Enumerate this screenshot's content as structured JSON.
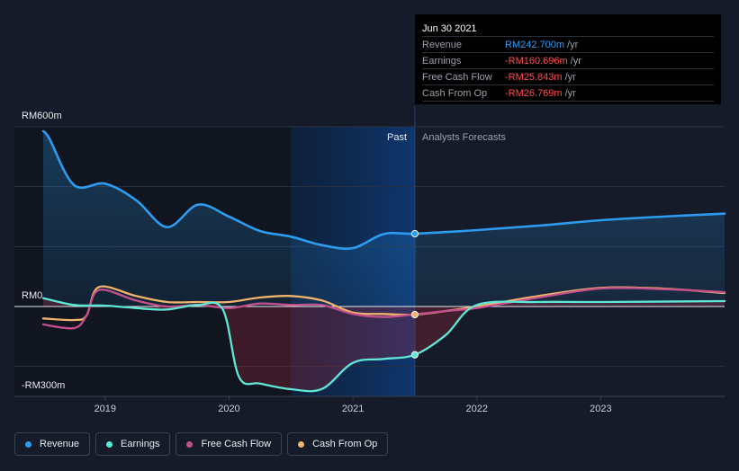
{
  "chart_data": {
    "type": "line",
    "title": "",
    "y_unit": "RM",
    "ylim": [
      -300,
      600
    ],
    "y_ticks": [
      {
        "value": 600,
        "label": "RM600m"
      },
      {
        "value": 0,
        "label": "RM0"
      },
      {
        "value": -300,
        "label": "-RM300m"
      }
    ],
    "xlim": [
      2018.5,
      2024.0
    ],
    "x_ticks": [
      {
        "value": 2019,
        "label": "2019"
      },
      {
        "value": 2020,
        "label": "2020"
      },
      {
        "value": 2021,
        "label": "2021"
      },
      {
        "value": 2022,
        "label": "2022"
      },
      {
        "value": 2023,
        "label": "2023"
      }
    ],
    "past_end": 2021.5,
    "shade_start": 2020.5,
    "region_labels": {
      "past": "Past",
      "forecast": "Analysts Forecasts"
    },
    "series": [
      {
        "name": "Revenue",
        "color": "#2d9cf0",
        "area": true,
        "points": [
          [
            2018.5,
            585
          ],
          [
            2018.55,
            560
          ],
          [
            2018.75,
            405
          ],
          [
            2019.0,
            410
          ],
          [
            2019.25,
            355
          ],
          [
            2019.5,
            265
          ],
          [
            2019.75,
            340
          ],
          [
            2020.0,
            300
          ],
          [
            2020.25,
            252
          ],
          [
            2020.5,
            233
          ],
          [
            2020.75,
            205
          ],
          [
            2021.0,
            195
          ],
          [
            2021.25,
            242
          ],
          [
            2021.5,
            243
          ],
          [
            2022.0,
            255
          ],
          [
            2022.5,
            270
          ],
          [
            2023.0,
            288
          ],
          [
            2023.5,
            300
          ],
          [
            2024.0,
            310
          ]
        ]
      },
      {
        "name": "Earnings",
        "color": "#5ee7d4",
        "area": true,
        "points": [
          [
            2018.5,
            28
          ],
          [
            2018.75,
            5
          ],
          [
            2019.0,
            3
          ],
          [
            2019.3,
            -7
          ],
          [
            2019.5,
            -10
          ],
          [
            2019.75,
            5
          ],
          [
            2019.95,
            -10
          ],
          [
            2020.08,
            -235
          ],
          [
            2020.25,
            -257
          ],
          [
            2020.5,
            -276
          ],
          [
            2020.75,
            -275
          ],
          [
            2021.0,
            -188
          ],
          [
            2021.25,
            -175
          ],
          [
            2021.5,
            -161
          ],
          [
            2021.75,
            -95
          ],
          [
            2022.0,
            5
          ],
          [
            2022.5,
            15
          ],
          [
            2023.0,
            15
          ],
          [
            2024.0,
            18
          ]
        ]
      },
      {
        "name": "Free Cash Flow",
        "color": "#c44f8d",
        "area": false,
        "points": [
          [
            2018.5,
            -60
          ],
          [
            2018.75,
            -72
          ],
          [
            2018.85,
            -30
          ],
          [
            2018.95,
            55
          ],
          [
            2019.25,
            20
          ],
          [
            2019.5,
            0
          ],
          [
            2019.75,
            5
          ],
          [
            2020.0,
            -5
          ],
          [
            2020.25,
            10
          ],
          [
            2020.5,
            5
          ],
          [
            2020.75,
            5
          ],
          [
            2021.0,
            -25
          ],
          [
            2021.25,
            -35
          ],
          [
            2021.5,
            -26
          ],
          [
            2021.75,
            -15
          ],
          [
            2022.0,
            -5
          ],
          [
            2022.5,
            30
          ],
          [
            2023.0,
            60
          ],
          [
            2023.5,
            58
          ],
          [
            2024.0,
            48
          ]
        ]
      },
      {
        "name": "Cash From Op",
        "color": "#f0b46c",
        "area": false,
        "points": [
          [
            2018.5,
            -40
          ],
          [
            2018.75,
            -45
          ],
          [
            2018.85,
            -30
          ],
          [
            2018.95,
            65
          ],
          [
            2019.25,
            35
          ],
          [
            2019.5,
            15
          ],
          [
            2019.75,
            15
          ],
          [
            2020.0,
            15
          ],
          [
            2020.25,
            30
          ],
          [
            2020.5,
            35
          ],
          [
            2020.75,
            20
          ],
          [
            2021.0,
            -20
          ],
          [
            2021.25,
            -25
          ],
          [
            2021.5,
            -27
          ],
          [
            2021.75,
            -15
          ],
          [
            2022.0,
            0
          ],
          [
            2022.5,
            35
          ],
          [
            2023.0,
            62
          ],
          [
            2023.5,
            60
          ],
          [
            2024.0,
            45
          ]
        ]
      }
    ],
    "marker_x": 2021.5
  },
  "tooltip": {
    "date": "Jun 30 2021",
    "rows": [
      {
        "label": "Revenue",
        "value": "RM242.700m",
        "unit": "/yr"
      },
      {
        "label": "Earnings",
        "value": "-RM160.696m",
        "unit": "/yr"
      },
      {
        "label": "Free Cash Flow",
        "value": "-RM25.843m",
        "unit": "/yr"
      },
      {
        "label": "Cash From Op",
        "value": "-RM26.769m",
        "unit": "/yr"
      }
    ]
  },
  "legend": [
    {
      "label": "Revenue",
      "color": "#2d9cf0"
    },
    {
      "label": "Earnings",
      "color": "#5ee7d4"
    },
    {
      "label": "Free Cash Flow",
      "color": "#c44f8d"
    },
    {
      "label": "Cash From Op",
      "color": "#f0b46c"
    }
  ]
}
